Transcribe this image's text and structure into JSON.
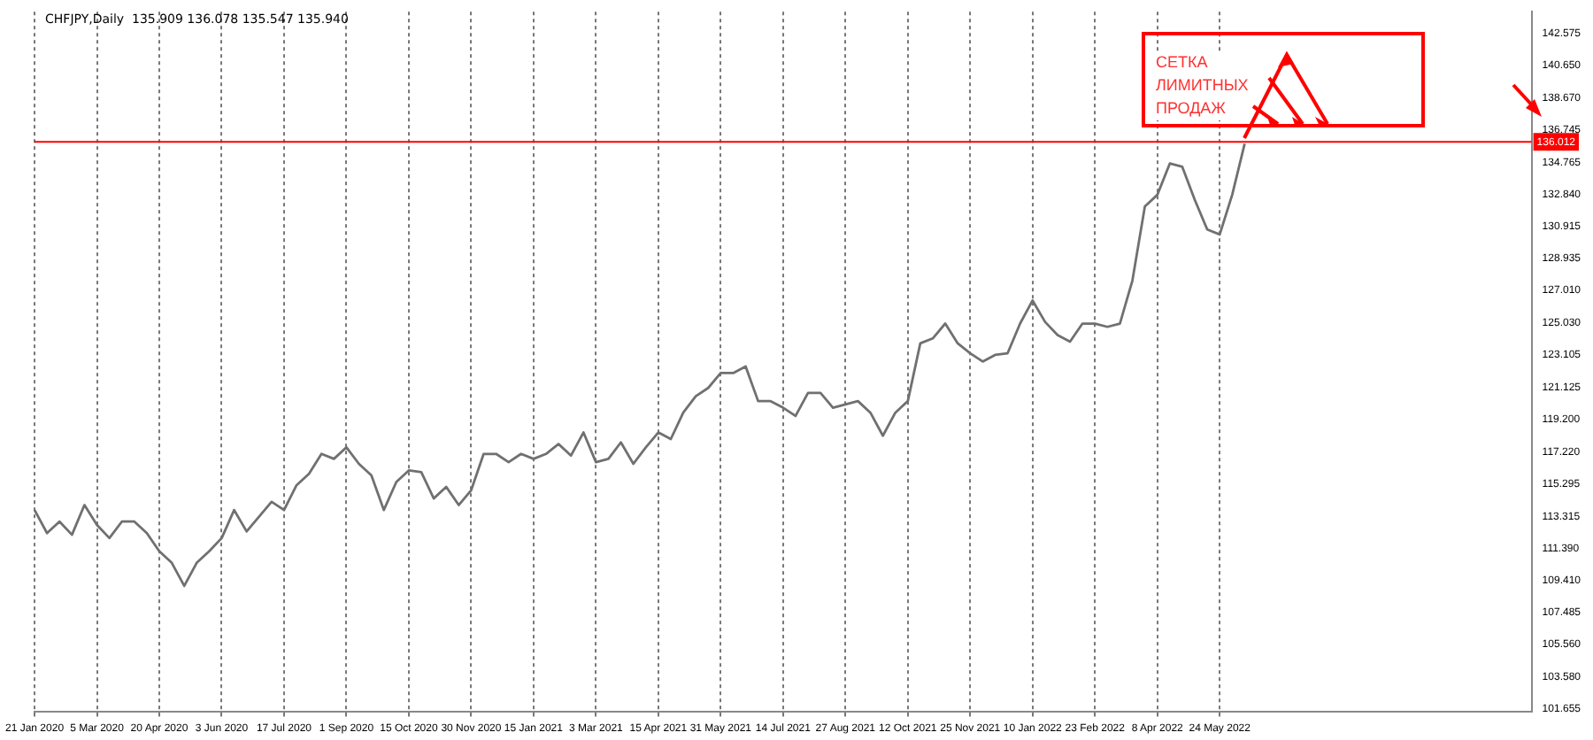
{
  "chart_data": {
    "type": "line",
    "title": "CHFJPY,Daily  135.909 136.078 135.547 135.940",
    "categories": [
      "21 Jan 2020",
      null,
      null,
      null,
      null,
      "5 Mar 2020",
      null,
      null,
      null,
      null,
      "20 Apr 2020",
      null,
      null,
      null,
      null,
      "3 Jun 2020",
      null,
      null,
      null,
      null,
      "17 Jul 2020",
      null,
      null,
      null,
      null,
      "1 Sep 2020",
      null,
      null,
      null,
      null,
      "15 Oct 2020",
      null,
      null,
      null,
      null,
      "30 Nov 2020",
      null,
      null,
      null,
      null,
      "15 Jan 2021",
      null,
      null,
      null,
      null,
      "3 Mar 2021",
      null,
      null,
      null,
      null,
      "15 Apr 2021",
      null,
      null,
      null,
      null,
      "31 May 2021",
      null,
      null,
      null,
      null,
      "14 Jul 2021",
      null,
      null,
      null,
      null,
      "27 Aug 2021",
      null,
      null,
      null,
      null,
      "12 Oct 2021",
      null,
      null,
      null,
      null,
      "25 Nov 2021",
      null,
      null,
      null,
      null,
      "10 Jan 2022",
      null,
      null,
      null,
      null,
      "23 Feb 2022",
      null,
      null,
      null,
      null,
      "8 Apr 2022",
      null,
      null,
      null,
      null,
      "24 May 2022",
      null,
      null,
      null,
      null,
      null,
      null,
      null,
      null,
      null,
      null,
      null,
      null,
      null,
      null,
      null,
      null,
      null,
      null,
      null,
      null,
      null,
      null,
      null,
      null,
      null
    ],
    "series": [
      {
        "color": "#707070",
        "values": [
          113.7,
          112.3,
          113.0,
          112.2,
          114.0,
          112.8,
          112.0,
          113.0,
          113.0,
          112.3,
          111.2,
          110.5,
          109.1,
          110.5,
          111.2,
          112.0,
          113.7,
          112.4,
          113.3,
          114.2,
          113.7,
          115.2,
          115.9,
          117.1,
          116.8,
          117.5,
          116.5,
          115.8,
          113.7,
          115.4,
          116.1,
          116.0,
          114.4,
          115.1,
          114.0,
          114.9,
          117.1,
          117.1,
          116.6,
          117.1,
          116.8,
          117.1,
          117.7,
          117.0,
          118.4,
          116.6,
          116.8,
          117.8,
          116.5,
          117.5,
          118.4,
          118.0,
          119.6,
          120.6,
          121.1,
          122.0,
          122.0,
          122.4,
          120.3,
          120.3,
          119.9,
          119.4,
          120.8,
          120.8,
          119.9,
          120.1,
          120.3,
          119.6,
          118.2,
          119.6,
          120.3,
          123.8,
          124.1,
          125.0,
          123.8,
          123.2,
          122.7,
          123.1,
          123.2,
          125.0,
          126.4,
          125.1,
          124.3,
          123.9,
          125.0,
          125.0,
          124.8,
          125.0,
          127.6,
          132.1,
          132.8,
          134.7,
          134.5,
          132.5,
          130.7,
          130.4,
          132.8,
          135.9,
          null,
          null,
          null,
          null,
          null,
          null,
          null,
          null,
          null,
          null,
          null,
          null,
          null,
          null,
          null,
          null,
          null,
          null,
          null,
          null,
          null,
          null,
          null
        ]
      }
    ],
    "ylim": [
      101.5,
      143.9
    ],
    "yticks": [
      101.655,
      {
        "value": 103.58,
        "label": "103.580"
      },
      {
        "value": 105.56,
        "label": "105.560"
      },
      107.485,
      {
        "value": 109.41,
        "label": "109.410"
      },
      {
        "value": 111.39,
        "label": "111.390"
      },
      113.315,
      115.295,
      {
        "value": 117.22,
        "label": "117.220"
      },
      {
        "value": 119.2,
        "label": "119.200"
      },
      121.125,
      123.105,
      {
        "value": 125.03,
        "label": "125.030"
      },
      {
        "value": 127.01,
        "label": "127.010"
      },
      128.935,
      130.915,
      {
        "value": 132.84,
        "label": "132.840"
      },
      134.765,
      136.745,
      {
        "value": 138.67,
        "label": "138.670"
      },
      {
        "value": 140.65,
        "label": "140.650"
      },
      142.575
    ],
    "grid": "x",
    "ref_lines": [
      {
        "axis": "y",
        "value": 136.012,
        "label": "136.012",
        "color": "#ff0000"
      }
    ],
    "annotations": [
      "СЕТКА ЛИМИТНЫХ ПРОДАЖ"
    ]
  }
}
